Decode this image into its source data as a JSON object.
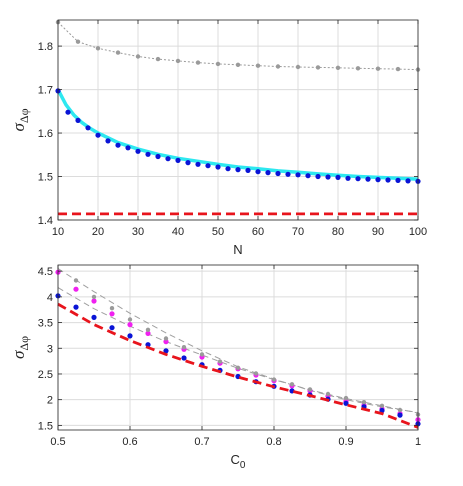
{
  "chart_data": [
    {
      "type": "line",
      "xlabel": "N",
      "ylabel": {
        "main": "σ",
        "sub": "Δφ"
      },
      "xlim": [
        10,
        100
      ],
      "ylim": [
        1.4,
        1.86
      ],
      "xticks": [
        10,
        20,
        30,
        40,
        50,
        60,
        70,
        80,
        90,
        100
      ],
      "yticks": [
        1.4,
        1.5,
        1.6,
        1.7,
        1.8
      ],
      "ytick_labels": [
        "1.4",
        "1.5",
        "1.6",
        "1.7",
        "1.8"
      ],
      "grid": true,
      "series": [
        {
          "style": "gray-dotted-line-with-markers",
          "color": "#9a9a9a",
          "x": [
            10,
            15,
            20,
            25,
            30,
            35,
            40,
            45,
            50,
            55,
            60,
            65,
            70,
            75,
            80,
            85,
            90,
            95,
            100
          ],
          "values": [
            1.855,
            1.81,
            1.795,
            1.785,
            1.776,
            1.77,
            1.766,
            1.762,
            1.759,
            1.757,
            1.755,
            1.753,
            1.752,
            1.751,
            1.75,
            1.749,
            1.748,
            1.747,
            1.746
          ]
        },
        {
          "style": "cyan-solid-line",
          "color": "#2ee8f0",
          "x": [
            10,
            12,
            14,
            16,
            18,
            20,
            25,
            30,
            35,
            40,
            45,
            50,
            55,
            60,
            65,
            70,
            75,
            80,
            85,
            90,
            95,
            100
          ],
          "values": [
            1.7,
            1.665,
            1.641,
            1.624,
            1.611,
            1.6,
            1.578,
            1.563,
            1.551,
            1.542,
            1.535,
            1.528,
            1.522,
            1.518,
            1.513,
            1.51,
            1.506,
            1.503,
            1.5,
            1.498,
            1.496,
            1.494
          ]
        },
        {
          "style": "blue-markers",
          "color": "#0a14d6",
          "x": [
            10,
            12.5,
            15,
            17.5,
            20,
            22.5,
            25,
            27.5,
            30,
            32.5,
            35,
            37.5,
            40,
            42.5,
            45,
            47.5,
            50,
            52.5,
            55,
            57.5,
            60,
            62.5,
            65,
            67.5,
            70,
            72.5,
            75,
            77.5,
            80,
            82.5,
            85,
            87.5,
            90,
            92.5,
            95,
            97.5,
            100
          ],
          "values": [
            1.697,
            1.648,
            1.629,
            1.612,
            1.595,
            1.582,
            1.572,
            1.566,
            1.558,
            1.551,
            1.546,
            1.541,
            1.537,
            1.532,
            1.528,
            1.525,
            1.522,
            1.518,
            1.516,
            1.514,
            1.511,
            1.509,
            1.507,
            1.505,
            1.504,
            1.502,
            1.5,
            1.499,
            1.498,
            1.496,
            1.495,
            1.494,
            1.493,
            1.492,
            1.491,
            1.49,
            1.489
          ]
        },
        {
          "style": "red-dashed-line",
          "color": "#e8141c",
          "x": [
            10,
            100
          ],
          "values": [
            1.414,
            1.414
          ]
        }
      ]
    },
    {
      "type": "line",
      "xlabel": "C",
      "xlabel_sub": "0",
      "ylabel": {
        "main": "σ",
        "sub": "Δφ"
      },
      "xlim": [
        0.5,
        1.0
      ],
      "ylim": [
        1.41,
        4.62
      ],
      "xticks": [
        0.5,
        0.6,
        0.7,
        0.8,
        0.9,
        1.0
      ],
      "xtick_labels": [
        "0.5",
        "0.6",
        "0.7",
        "0.8",
        "0.9",
        "1"
      ],
      "yticks": [
        1.5,
        2,
        2.5,
        3,
        3.5,
        4,
        4.5
      ],
      "ytick_labels": [
        "1.5",
        "2",
        "2.5",
        "3",
        "3.5",
        "4",
        "4.5"
      ],
      "grid": true,
      "series": [
        {
          "style": "gray-dashed-line-upper",
          "color": "#a0a0a0",
          "x": [
            0.5,
            0.55,
            0.6,
            0.65,
            0.7,
            0.75,
            0.8,
            0.85,
            0.9,
            0.95,
            1.0
          ],
          "values": [
            4.55,
            4.1,
            3.68,
            3.3,
            2.95,
            2.64,
            2.4,
            2.18,
            2.0,
            1.86,
            1.75
          ]
        },
        {
          "style": "gray-dashed-line-lower",
          "color": "#a0a0a0",
          "x": [
            0.5,
            0.55,
            0.6,
            0.65,
            0.7,
            0.75,
            0.8,
            0.85,
            0.9,
            0.95,
            1.0
          ],
          "values": [
            4.18,
            3.77,
            3.43,
            3.13,
            2.87,
            2.61,
            2.39,
            2.19,
            2.02,
            1.88,
            1.74
          ]
        },
        {
          "style": "magenta-markers",
          "color": "#f020f0",
          "x": [
            0.5,
            0.525,
            0.55,
            0.575,
            0.6,
            0.625,
            0.65,
            0.675,
            0.7,
            0.725,
            0.75,
            0.775,
            0.8,
            0.825,
            0.85,
            0.875,
            0.9,
            0.925,
            0.95,
            0.975,
            1.0
          ],
          "values": [
            4.48,
            4.15,
            3.92,
            3.67,
            3.46,
            3.29,
            3.13,
            2.98,
            2.83,
            2.71,
            2.6,
            2.48,
            2.37,
            2.27,
            2.17,
            2.07,
            1.97,
            1.89,
            1.82,
            1.73,
            1.61
          ]
        },
        {
          "style": "gray-markers",
          "color": "#9a9a9a",
          "x": [
            0.525,
            0.55,
            0.575,
            0.6,
            0.625,
            0.65,
            0.675,
            0.7,
            0.725,
            0.75,
            0.775,
            0.8,
            0.825,
            0.85,
            0.875,
            0.9,
            0.925,
            0.95,
            0.975,
            1.0
          ],
          "values": [
            4.32,
            4.0,
            3.78,
            3.56,
            3.36,
            3.19,
            3.02,
            2.88,
            2.74,
            2.62,
            2.51,
            2.39,
            2.3,
            2.2,
            2.11,
            2.03,
            1.95,
            1.88,
            1.8,
            1.71
          ]
        },
        {
          "style": "blue-markers",
          "color": "#0a14d6",
          "x": [
            0.5,
            0.525,
            0.55,
            0.575,
            0.6,
            0.625,
            0.65,
            0.675,
            0.7,
            0.725,
            0.75,
            0.775,
            0.8,
            0.825,
            0.85,
            0.875,
            0.9,
            0.925,
            0.95,
            0.975,
            1.0
          ],
          "values": [
            4.02,
            3.8,
            3.6,
            3.4,
            3.24,
            3.07,
            2.95,
            2.81,
            2.68,
            2.57,
            2.45,
            2.35,
            2.26,
            2.17,
            2.09,
            2.01,
            1.93,
            1.86,
            1.79,
            1.7,
            1.53
          ]
        },
        {
          "style": "red-dashed-line",
          "color": "#e8141c",
          "x": [
            0.5,
            0.55,
            0.6,
            0.65,
            0.7,
            0.75,
            0.8,
            0.85,
            0.9,
            0.95,
            1.0
          ],
          "values": [
            3.86,
            3.46,
            3.15,
            2.88,
            2.65,
            2.44,
            2.25,
            2.08,
            1.9,
            1.73,
            1.46
          ]
        }
      ]
    }
  ]
}
